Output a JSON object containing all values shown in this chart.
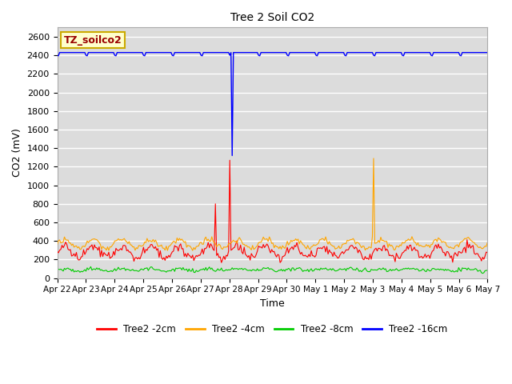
{
  "title": "Tree 2 Soil CO2",
  "xlabel": "Time",
  "ylabel": "CO2 (mV)",
  "legend_label": "TZ_soilco2",
  "ylim": [
    0,
    2700
  ],
  "yticks": [
    0,
    200,
    400,
    600,
    800,
    1000,
    1200,
    1400,
    1600,
    1800,
    2000,
    2200,
    2400,
    2600
  ],
  "background_color": "#dcdcdc",
  "grid_color": "#ffffff",
  "series": {
    "Tree2 -2cm": {
      "color": "#ff0000"
    },
    "Tree2 -4cm": {
      "color": "#ffa500"
    },
    "Tree2 -8cm": {
      "color": "#00cc00"
    },
    "Tree2 -16cm": {
      "color": "#0000ff"
    }
  },
  "tick_labels": [
    "Apr 22",
    "Apr 23",
    "Apr 24",
    "Apr 25",
    "Apr 26",
    "Apr 27",
    "Apr 28",
    "Apr 29",
    "Apr 30",
    "May 1",
    "May 2",
    "May 3",
    "May 4",
    "May 5",
    "May 6",
    "May 7"
  ],
  "figsize": [
    6.4,
    4.8
  ],
  "dpi": 100
}
